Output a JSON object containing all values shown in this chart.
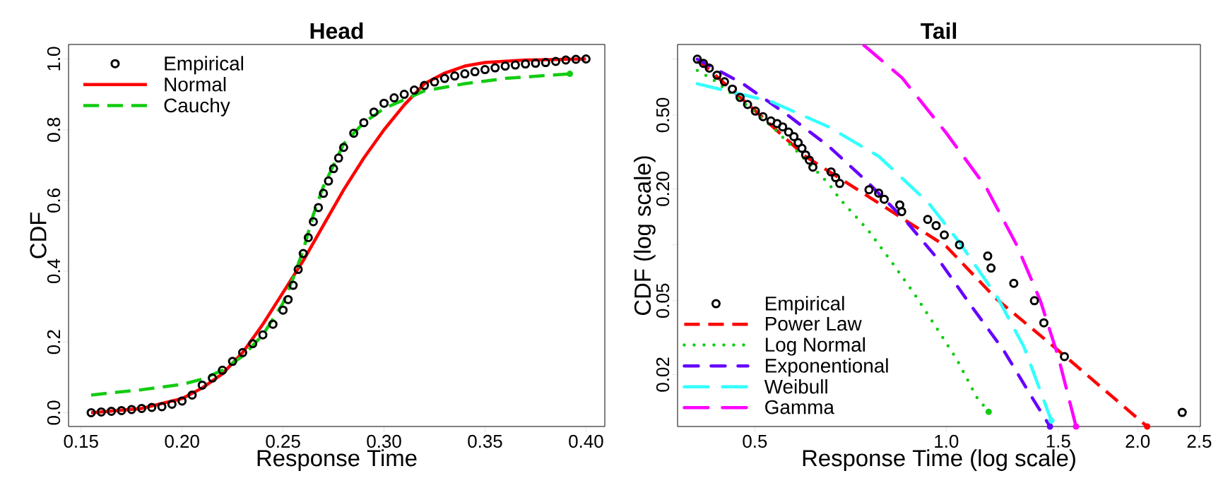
{
  "chart_data": [
    {
      "type": "line",
      "title": "Head",
      "xlabel": "Response Time",
      "ylabel": "CDF",
      "xlim": [
        0.1438,
        0.4093
      ],
      "ylim": [
        -0.039,
        1.041
      ],
      "xticks": [
        0.15,
        {
          "value": 0.2,
          "label": "0.20"
        },
        0.25,
        {
          "value": 0.3,
          "label": "0.30"
        },
        0.35,
        {
          "value": 0.4,
          "label": "0.40"
        }
      ],
      "yticks": [
        {
          "value": 0,
          "label": "0.0"
        },
        0.2,
        0.4,
        0.6,
        0.8,
        {
          "value": 1,
          "label": "1.0"
        }
      ],
      "grid": false,
      "legend": "top left",
      "series": [
        {
          "name": "Empirical",
          "type": "scatter",
          "marker": "circle",
          "color": "#000000",
          "x": [
            0.155,
            0.16,
            0.165,
            0.17,
            0.175,
            0.18,
            0.185,
            0.19,
            0.195,
            0.2,
            0.205,
            0.21,
            0.215,
            0.22,
            0.225,
            0.23,
            0.235,
            0.24,
            0.245,
            0.25,
            0.2525,
            0.255,
            0.2575,
            0.26,
            0.2625,
            0.265,
            0.2675,
            0.27,
            0.2725,
            0.275,
            0.2775,
            0.28,
            0.285,
            0.29,
            0.295,
            0.3,
            0.305,
            0.31,
            0.315,
            0.32,
            0.325,
            0.33,
            0.335,
            0.34,
            0.345,
            0.35,
            0.355,
            0.36,
            0.365,
            0.37,
            0.375,
            0.38,
            0.385,
            0.39,
            0.395,
            0.4
          ],
          "values": [
            0.0,
            0.002,
            0.004,
            0.006,
            0.009,
            0.012,
            0.015,
            0.017,
            0.024,
            0.033,
            0.05,
            0.078,
            0.098,
            0.12,
            0.145,
            0.17,
            0.195,
            0.22,
            0.25,
            0.29,
            0.32,
            0.36,
            0.405,
            0.45,
            0.495,
            0.54,
            0.58,
            0.62,
            0.655,
            0.69,
            0.72,
            0.75,
            0.79,
            0.82,
            0.85,
            0.875,
            0.89,
            0.9,
            0.912,
            0.925,
            0.935,
            0.945,
            0.952,
            0.958,
            0.964,
            0.97,
            0.975,
            0.98,
            0.983,
            0.986,
            0.988,
            0.99,
            0.993,
            0.997,
            0.999,
            1.0
          ]
        },
        {
          "name": "Normal",
          "color": "#ff0000",
          "line_style": "solid",
          "x": [
            0.155,
            0.18,
            0.2,
            0.21,
            0.22,
            0.23,
            0.24,
            0.25,
            0.26,
            0.27,
            0.28,
            0.29,
            0.3,
            0.31,
            0.32,
            0.33,
            0.34,
            0.35,
            0.37,
            0.4
          ],
          "values": [
            0.0,
            0.012,
            0.04,
            0.07,
            0.11,
            0.17,
            0.25,
            0.34,
            0.43,
            0.53,
            0.63,
            0.72,
            0.8,
            0.87,
            0.93,
            0.96,
            0.98,
            0.99,
            0.997,
            1.0
          ]
        },
        {
          "name": "Cauchy",
          "color": "#11cc11",
          "line_style": "dashed",
          "x": [
            0.155,
            0.18,
            0.2,
            0.21,
            0.22,
            0.23,
            0.24,
            0.25,
            0.255,
            0.26,
            0.265,
            0.27,
            0.28,
            0.29,
            0.3,
            0.31,
            0.32,
            0.34,
            0.36,
            0.392
          ],
          "values": [
            0.05,
            0.065,
            0.08,
            0.095,
            0.12,
            0.16,
            0.22,
            0.31,
            0.38,
            0.46,
            0.56,
            0.64,
            0.76,
            0.82,
            0.86,
            0.885,
            0.91,
            0.93,
            0.945,
            0.958
          ]
        }
      ]
    },
    {
      "type": "line",
      "title": "Tail",
      "xlabel": "Response Time (log scale)",
      "ylabel": "CDF (log scale)",
      "log": "xy",
      "xlim": [
        0.378,
        2.51
      ],
      "ylim": [
        0.0105,
        1.2
      ],
      "xticks": [
        0.5,
        {
          "value": 1,
          "label": "1.0"
        },
        1.5,
        {
          "value": 2,
          "label": "2.0"
        },
        2.5
      ],
      "yticks": [
        0.02,
        0.05,
        {
          "value": 0.1,
          "label": null
        },
        {
          "value": 0.2,
          "label": "0.20"
        },
        {
          "value": 0.5,
          "label": "0.50"
        },
        {
          "value": 1,
          "label": null
        }
      ],
      "grid": false,
      "legend": "bottom left",
      "series": [
        {
          "name": "Empirical",
          "type": "scatter",
          "marker": "circle",
          "color": "#000000",
          "x": [
            0.406,
            0.415,
            0.424,
            0.436,
            0.448,
            0.461,
            0.474,
            0.487,
            0.501,
            0.515,
            0.53,
            0.542,
            0.553,
            0.565,
            0.576,
            0.585,
            0.593,
            0.601,
            0.609,
            0.617,
            0.659,
            0.67,
            0.68,
            0.756,
            0.783,
            0.799,
            0.845,
            0.851,
            0.935,
            0.964,
            0.993,
            1.049,
            1.162,
            1.176,
            1.277,
            1.376,
            1.424,
            1.534,
            2.35
          ],
          "values": [
            1.0,
            0.95,
            0.895,
            0.82,
            0.756,
            0.69,
            0.622,
            0.57,
            0.525,
            0.49,
            0.465,
            0.45,
            0.432,
            0.405,
            0.383,
            0.355,
            0.331,
            0.305,
            0.286,
            0.262,
            0.247,
            0.23,
            0.214,
            0.198,
            0.19,
            0.176,
            0.164,
            0.151,
            0.137,
            0.127,
            0.113,
            0.1,
            0.087,
            0.075,
            0.062,
            0.05,
            0.038,
            0.025,
            0.0125
          ]
        },
        {
          "name": "Power Law",
          "color": "#ff0000",
          "line_style": "dashed",
          "x": [
            0.406,
            0.5,
            0.6,
            0.8,
            1.0,
            1.2,
            1.5,
            2.07
          ],
          "values": [
            1.0,
            0.53,
            0.3,
            0.16,
            0.098,
            0.051,
            0.027,
            0.0105
          ]
        },
        {
          "name": "Log Normal",
          "color": "#11cc11",
          "line_style": "dotted",
          "x": [
            0.406,
            0.43,
            0.481,
            0.537,
            0.593,
            0.653,
            0.681,
            0.752,
            0.816,
            0.889,
            0.964,
            1.04,
            1.118,
            1.166
          ],
          "values": [
            0.87,
            0.775,
            0.58,
            0.42,
            0.3,
            0.214,
            0.176,
            0.121,
            0.083,
            0.055,
            0.036,
            0.024,
            0.015,
            0.0126
          ]
        },
        {
          "name": "Exponentional",
          "color": "#6600ff",
          "line_style": "dashdot",
          "x": [
            0.406,
            0.478,
            0.561,
            0.653,
            0.751,
            0.863,
            0.978,
            1.094,
            1.231,
            1.365,
            1.456
          ],
          "values": [
            1.0,
            0.74,
            0.505,
            0.34,
            0.219,
            0.135,
            0.081,
            0.047,
            0.027,
            0.015,
            0.0105
          ]
        },
        {
          "name": "Weibull",
          "color": "#33ffff",
          "line_style": "longdashdot",
          "x": [
            0.406,
            0.53,
            0.653,
            0.783,
            0.938,
            1.049,
            1.204,
            1.326,
            1.463
          ],
          "values": [
            0.737,
            0.592,
            0.432,
            0.3,
            0.168,
            0.103,
            0.052,
            0.028,
            0.0113
          ]
        },
        {
          "name": "Gamma",
          "color": "#ff00ff",
          "line_style": "longdashdot",
          "x": [
            0.742,
            0.852,
            1.0,
            1.155,
            1.292,
            1.406,
            1.5,
            1.6
          ],
          "values": [
            1.19,
            0.794,
            0.4,
            0.204,
            0.099,
            0.05,
            0.025,
            0.0105
          ]
        }
      ]
    }
  ]
}
